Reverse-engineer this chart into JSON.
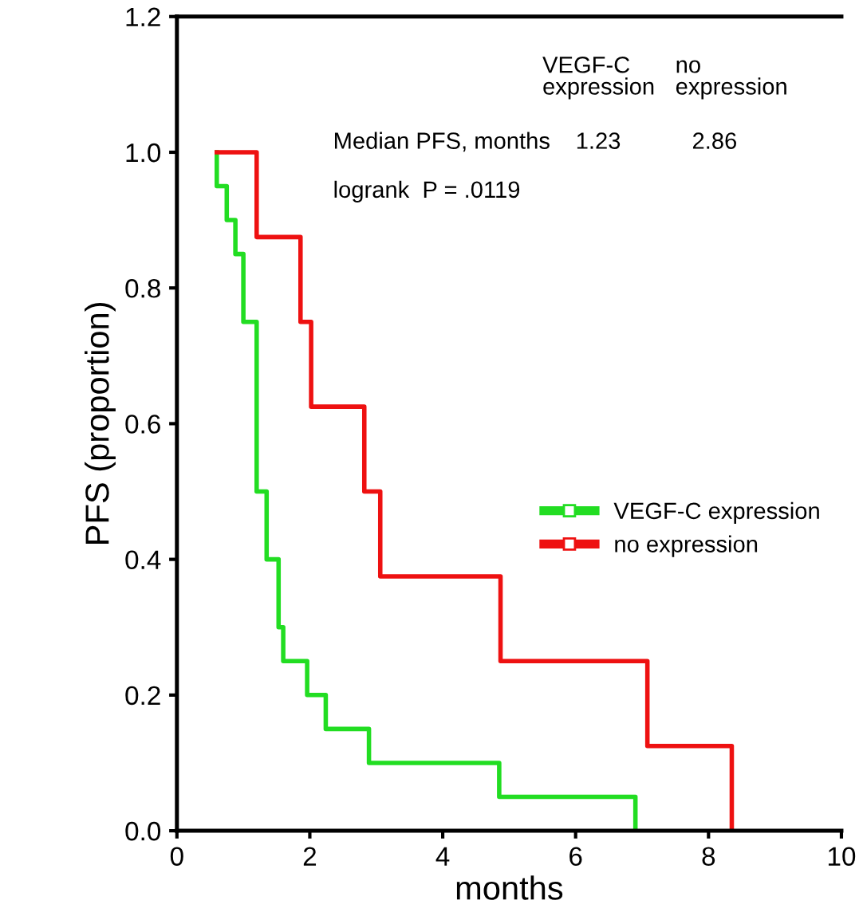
{
  "chart_data": {
    "type": "step",
    "xlabel": "months",
    "ylabel": "PFS (proportion)",
    "xlim": [
      0,
      10
    ],
    "xticks": [
      0,
      2,
      4,
      6,
      8,
      10
    ],
    "ylim": [
      0,
      1.2
    ],
    "yticks": [
      {
        "value": 0,
        "label": "0.0"
      },
      0.2,
      0.4,
      0.6,
      0.8,
      {
        "value": 1,
        "label": "1.0"
      },
      1.2
    ],
    "series": [
      {
        "name": "VEGF-C expression",
        "color": "#22dd22",
        "x": [
          0.6,
          0.6,
          0.75,
          0.88,
          1.0,
          1.2,
          1.35,
          1.53,
          1.6,
          1.96,
          2.24,
          2.89,
          4.85,
          6.9
        ],
        "values": [
          1.0,
          0.95,
          0.9,
          0.85,
          0.75,
          0.5,
          0.4,
          0.3,
          0.25,
          0.2,
          0.15,
          0.1,
          0.05,
          0
        ]
      },
      {
        "name": "no expression",
        "color": "#ee1111",
        "x": [
          0.6,
          1.2,
          1.86,
          2.02,
          2.82,
          3.06,
          4.87,
          7.08,
          8.35
        ],
        "values": [
          1.0,
          0.875,
          0.75,
          0.625,
          0.5,
          0.375,
          0.25,
          0.125,
          0
        ]
      }
    ],
    "legend": "right",
    "grid": false,
    "annotations": [
      "VEGF-C\nexpression",
      "no\nexpression",
      "Median PFS, months",
      "1.23",
      "2.86",
      "logrank  P = .0119"
    ]
  }
}
